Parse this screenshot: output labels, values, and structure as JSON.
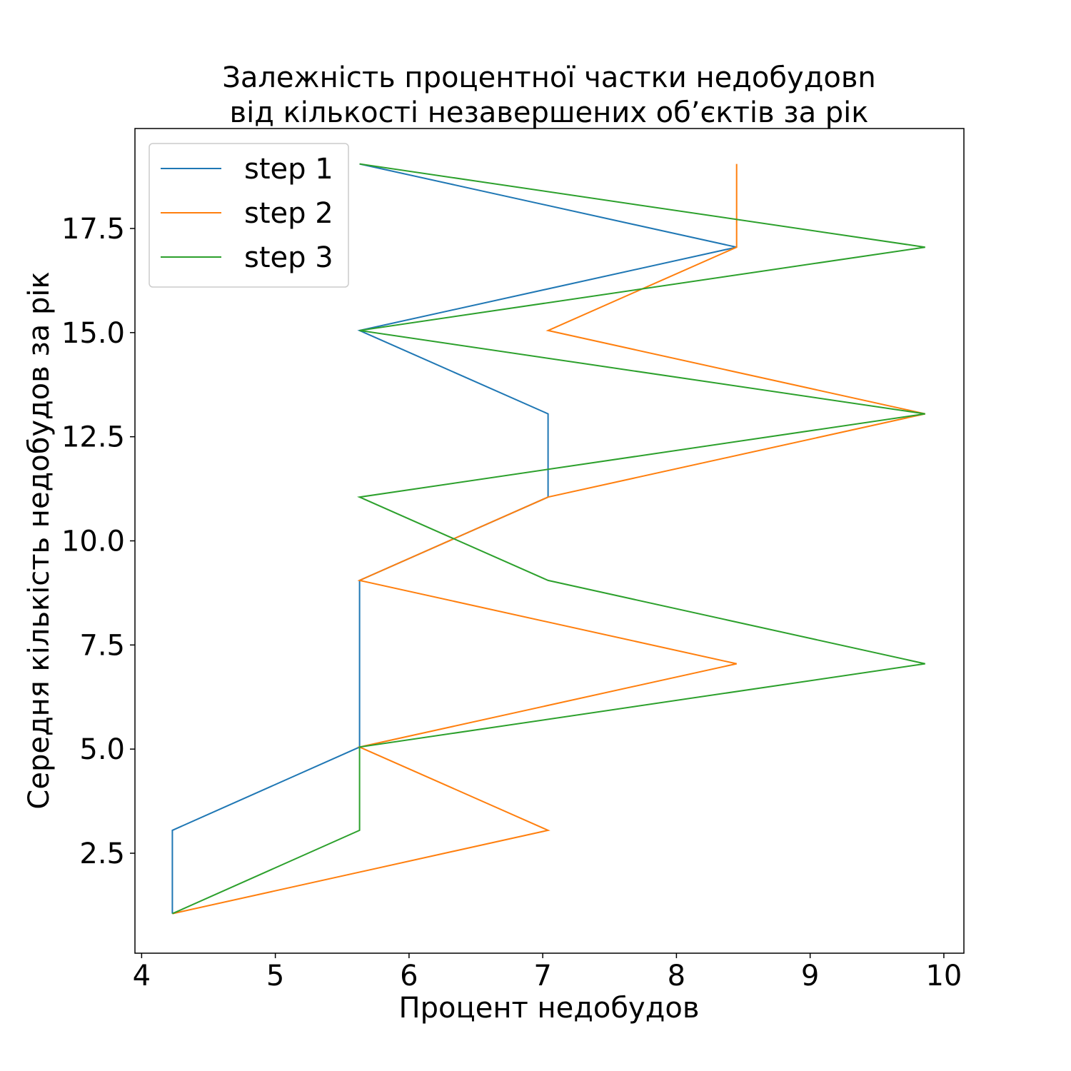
{
  "chart_data": {
    "type": "line",
    "title_line1": "Залежність процентної частки недобудовn",
    "title_line2": "від кількості незавершених об’єктів за рік",
    "xlabel": "Процент недобудов",
    "ylabel": "Середня кількість недобудов за рік",
    "xlim": [
      3.95,
      10.15
    ],
    "ylim": [
      0.1,
      19.9
    ],
    "x_ticks": [
      4,
      5,
      6,
      7,
      8,
      9,
      10
    ],
    "x_tick_labels": [
      "4",
      "5",
      "6",
      "7",
      "8",
      "9",
      "10"
    ],
    "y_ticks": [
      2.5,
      5.0,
      7.5,
      10.0,
      12.5,
      15.0,
      17.5
    ],
    "y_tick_labels": [
      "2.5",
      "5.0",
      "7.5",
      "10.0",
      "12.5",
      "15.0",
      "17.5"
    ],
    "grid": false,
    "legend_position": "top-left",
    "series": [
      {
        "name": "step 1",
        "color": "#1f77b4",
        "points": [
          [
            4.23,
            1.05
          ],
          [
            4.23,
            3.05
          ],
          [
            5.63,
            5.05
          ],
          [
            5.63,
            7.05
          ],
          [
            5.63,
            9.05
          ],
          [
            7.04,
            11.05
          ],
          [
            7.04,
            13.05
          ],
          [
            5.63,
            15.05
          ],
          [
            8.45,
            17.05
          ],
          [
            5.63,
            19.05
          ]
        ]
      },
      {
        "name": "step 2",
        "color": "#ff7f0e",
        "points": [
          [
            4.23,
            1.05
          ],
          [
            7.04,
            3.05
          ],
          [
            5.63,
            5.05
          ],
          [
            8.45,
            7.05
          ],
          [
            5.63,
            9.05
          ],
          [
            7.04,
            11.05
          ],
          [
            9.86,
            13.05
          ],
          [
            7.04,
            15.05
          ],
          [
            8.45,
            17.05
          ],
          [
            8.45,
            19.05
          ]
        ]
      },
      {
        "name": "step 3",
        "color": "#2ca02c",
        "points": [
          [
            4.23,
            1.05
          ],
          [
            5.63,
            3.05
          ],
          [
            5.63,
            5.05
          ],
          [
            9.86,
            7.05
          ],
          [
            7.04,
            9.05
          ],
          [
            5.63,
            11.05
          ],
          [
            9.86,
            13.05
          ],
          [
            5.63,
            15.05
          ],
          [
            9.86,
            17.05
          ],
          [
            5.63,
            19.05
          ]
        ]
      }
    ]
  }
}
